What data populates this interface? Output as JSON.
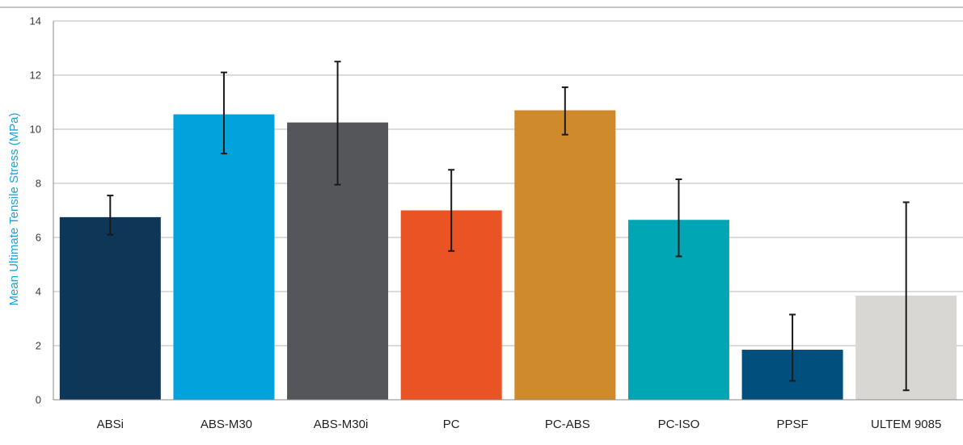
{
  "chart_data": {
    "type": "bar",
    "title": "",
    "xlabel": "",
    "ylabel": "Mean Ultimate Tensile Stress (MPa)",
    "ylim": [
      0,
      14
    ],
    "yticks": [
      0,
      2,
      4,
      6,
      8,
      10,
      12,
      14
    ],
    "grid": true,
    "legend": "none",
    "categories": [
      "ABSi",
      "ABS-M30",
      "ABS-M30i",
      "PC",
      "PC-ABS",
      "PC-ISO",
      "PPSF",
      "ULTEM 9085"
    ],
    "values": [
      6.75,
      10.55,
      10.25,
      7.0,
      10.7,
      6.65,
      1.85,
      3.85
    ],
    "error_low": [
      6.1,
      9.1,
      7.95,
      5.5,
      9.8,
      5.3,
      0.7,
      0.35
    ],
    "error_high": [
      7.55,
      12.1,
      12.5,
      8.5,
      11.55,
      8.15,
      3.15,
      7.3
    ],
    "colors": [
      "#0d3657",
      "#00a3dc",
      "#55565a",
      "#ea5323",
      "#cf8b2b",
      "#00a6b4",
      "#004f7d",
      "#d8d7d4"
    ]
  }
}
